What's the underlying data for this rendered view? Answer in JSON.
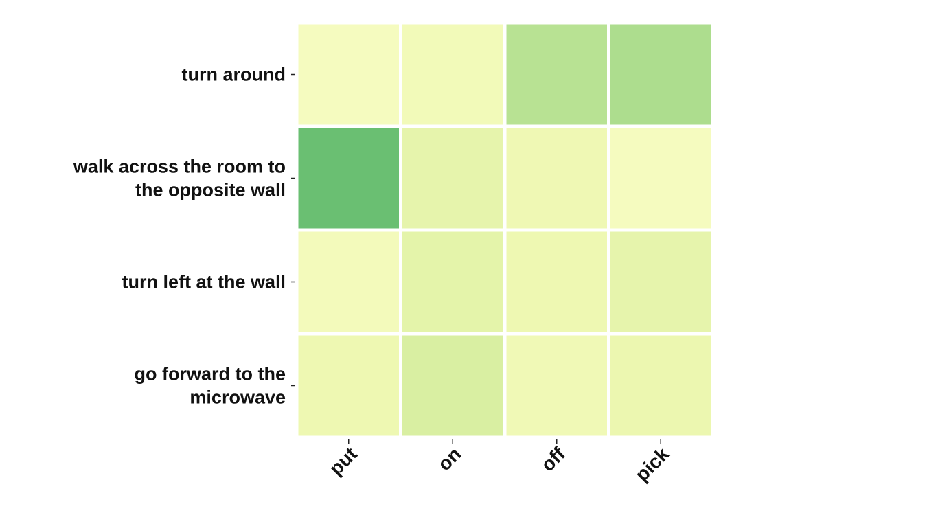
{
  "chart_data": {
    "type": "heatmap",
    "title": "",
    "xlabel": "",
    "ylabel": "",
    "x_categories": [
      "put",
      "on",
      "off",
      "pick"
    ],
    "y_categories": [
      [
        "turn around"
      ],
      [
        "walk across the room to",
        "the opposite wall"
      ],
      [
        "turn left at the wall"
      ],
      [
        "go forward to the",
        "microwave"
      ]
    ],
    "values": [
      [
        0.05,
        0.12,
        0.55,
        0.6
      ],
      [
        0.85,
        0.28,
        0.18,
        0.05
      ],
      [
        0.1,
        0.3,
        0.2,
        0.28
      ],
      [
        0.2,
        0.4,
        0.15,
        0.22
      ]
    ],
    "colormap": [
      "#f7fcc3",
      "#eef8b2",
      "#d9efa2",
      "#addd8e",
      "#78c679",
      "#41ab5d"
    ],
    "grid": false,
    "legend": "none"
  }
}
